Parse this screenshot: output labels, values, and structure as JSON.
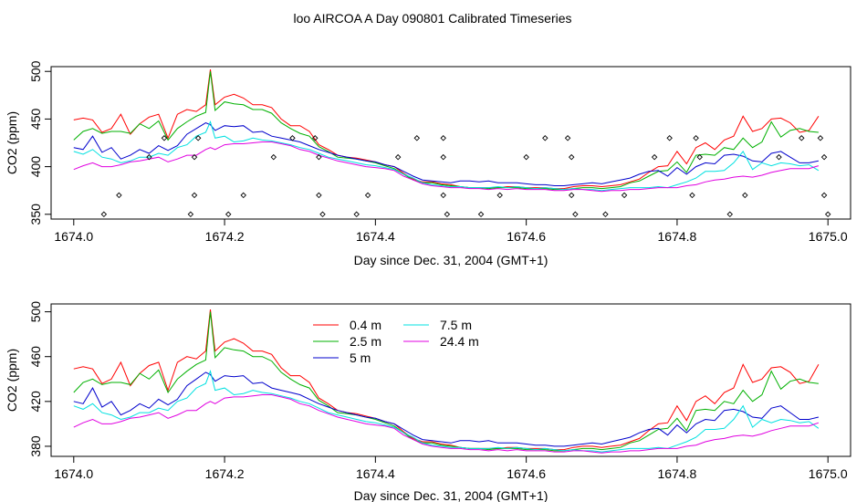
{
  "title": "loo AIRCOA A  Day 090801  Calibrated Timeseries",
  "chart_data": [
    {
      "type": "line",
      "xlabel": "Day since Dec. 31, 2004 (GMT+1)",
      "ylabel": "CO2 (ppm)",
      "xlim": [
        1673.97,
        1675.03
      ],
      "ylim": [
        345,
        505
      ],
      "xticks": [
        1674.0,
        1674.2,
        1674.4,
        1674.6,
        1674.8,
        1675.0
      ],
      "xtick_labels": [
        "1674.0",
        "1674.2",
        "1674.4",
        "1674.6",
        "1674.8",
        "1675.0"
      ],
      "yticks": [
        350,
        400,
        450,
        500
      ],
      "ytick_labels": [
        "350",
        "400",
        "450",
        "500"
      ],
      "grid": false,
      "legend": "none",
      "x": [
        1674.0,
        1674.0125,
        1674.025,
        1674.0375,
        1674.05,
        1674.0625,
        1674.075,
        1674.0875,
        1674.1,
        1674.1125,
        1674.125,
        1674.1375,
        1674.15,
        1674.1625,
        1674.175,
        1674.1812,
        1674.1875,
        1674.2,
        1674.2125,
        1674.225,
        1674.2375,
        1674.25,
        1674.2625,
        1674.275,
        1674.2875,
        1674.3,
        1674.3125,
        1674.325,
        1674.3375,
        1674.35,
        1674.3625,
        1674.375,
        1674.3875,
        1674.4,
        1674.4125,
        1674.425,
        1674.4375,
        1674.45,
        1674.4625,
        1674.475,
        1674.4875,
        1674.5,
        1674.5125,
        1674.525,
        1674.5375,
        1674.55,
        1674.5625,
        1674.575,
        1674.5875,
        1674.6,
        1674.6125,
        1674.625,
        1674.6375,
        1674.65,
        1674.6625,
        1674.675,
        1674.6875,
        1674.7,
        1674.7125,
        1674.725,
        1674.7375,
        1674.75,
        1674.7625,
        1674.775,
        1674.7875,
        1674.8,
        1674.8125,
        1674.825,
        1674.8375,
        1674.85,
        1674.8625,
        1674.875,
        1674.8875,
        1674.9,
        1674.9125,
        1674.925,
        1674.9375,
        1674.95,
        1674.9625,
        1674.975,
        1674.9875
      ],
      "series": [
        {
          "name": "0.4 m",
          "color": "#ff0000",
          "values": [
            449,
            451,
            449,
            436,
            440,
            455,
            434,
            445,
            452,
            455,
            430,
            455,
            460,
            458,
            465,
            502,
            465,
            473,
            476,
            472,
            465,
            465,
            462,
            450,
            443,
            443,
            437,
            423,
            418,
            412,
            410,
            409,
            407,
            405,
            402,
            400,
            393,
            387,
            384,
            384,
            382,
            381,
            379,
            378,
            378,
            378,
            378,
            379,
            379,
            378,
            378,
            378,
            377,
            377,
            379,
            380,
            380,
            379,
            380,
            381,
            384,
            387,
            394,
            400,
            401,
            416,
            403,
            420,
            425,
            418,
            428,
            432,
            453,
            437,
            440,
            450,
            451,
            446,
            436,
            438,
            453
          ]
        },
        {
          "name": "2.5 m",
          "color": "#00b000",
          "values": [
            428,
            437,
            440,
            435,
            437,
            437,
            435,
            445,
            440,
            448,
            428,
            440,
            447,
            453,
            457,
            500,
            459,
            468,
            466,
            465,
            460,
            460,
            456,
            446,
            440,
            435,
            432,
            421,
            416,
            410,
            409,
            408,
            406,
            404,
            401,
            398,
            392,
            386,
            383,
            383,
            381,
            380,
            379,
            378,
            378,
            377,
            378,
            378,
            378,
            377,
            377,
            377,
            376,
            376,
            377,
            378,
            378,
            377,
            378,
            379,
            383,
            385,
            390,
            395,
            396,
            405,
            394,
            412,
            413,
            412,
            420,
            418,
            430,
            420,
            426,
            447,
            431,
            438,
            440,
            437,
            436
          ]
        },
        {
          "name": "5 m",
          "color": "#0000cc",
          "values": [
            420,
            418,
            432,
            415,
            420,
            408,
            412,
            418,
            414,
            422,
            417,
            422,
            434,
            440,
            446,
            444,
            438,
            443,
            442,
            443,
            436,
            437,
            432,
            430,
            428,
            426,
            422,
            418,
            415,
            412,
            410,
            408,
            406,
            405,
            402,
            400,
            395,
            390,
            386,
            385,
            384,
            383,
            385,
            385,
            384,
            385,
            383,
            383,
            383,
            382,
            381,
            381,
            380,
            380,
            381,
            382,
            383,
            382,
            384,
            386,
            388,
            392,
            395,
            396,
            390,
            399,
            392,
            400,
            404,
            403,
            412,
            413,
            411,
            406,
            405,
            414,
            416,
            410,
            404,
            404,
            406
          ]
        },
        {
          "name": "7.5 m",
          "color": "#00e0e0",
          "values": [
            416,
            413,
            418,
            410,
            408,
            404,
            406,
            410,
            410,
            414,
            412,
            420,
            423,
            432,
            436,
            447,
            430,
            432,
            426,
            427,
            430,
            428,
            427,
            425,
            423,
            420,
            418,
            414,
            410,
            408,
            406,
            404,
            402,
            401,
            399,
            397,
            392,
            388,
            383,
            381,
            380,
            379,
            379,
            378,
            378,
            378,
            379,
            378,
            379,
            378,
            377,
            378,
            377,
            376,
            377,
            376,
            376,
            375,
            376,
            377,
            378,
            378,
            378,
            379,
            378,
            381,
            384,
            388,
            395,
            395,
            396,
            404,
            416,
            397,
            404,
            401,
            404,
            403,
            401,
            402,
            396
          ]
        },
        {
          "name": "24.4 m",
          "color": "#e000e0",
          "values": [
            397,
            401,
            404,
            400,
            400,
            402,
            405,
            406,
            408,
            410,
            405,
            408,
            412,
            412,
            418,
            420,
            418,
            423,
            424,
            424,
            425,
            426,
            426,
            424,
            422,
            418,
            416,
            412,
            409,
            406,
            404,
            402,
            400,
            399,
            398,
            396,
            390,
            386,
            382,
            380,
            379,
            378,
            378,
            377,
            377,
            376,
            377,
            376,
            377,
            376,
            376,
            376,
            375,
            375,
            376,
            376,
            375,
            374,
            375,
            375,
            376,
            376,
            377,
            378,
            378,
            378,
            380,
            381,
            384,
            386,
            387,
            389,
            390,
            389,
            391,
            394,
            396,
            398,
            398,
            398,
            401
          ]
        }
      ],
      "scatter_series": {
        "name": "",
        "marker": "open-diamond",
        "x": [
          1674.04,
          1674.06,
          1674.1,
          1674.12,
          1674.155,
          1674.16,
          1674.16,
          1674.165,
          1674.205,
          1674.225,
          1674.265,
          1674.29,
          1674.32,
          1674.325,
          1674.325,
          1674.33,
          1674.375,
          1674.39,
          1674.43,
          1674.455,
          1674.49,
          1674.49,
          1674.49,
          1674.495,
          1674.54,
          1674.565,
          1674.6,
          1674.625,
          1674.655,
          1674.66,
          1674.66,
          1674.665,
          1674.705,
          1674.73,
          1674.77,
          1674.79,
          1674.82,
          1674.825,
          1674.83,
          1674.87,
          1674.89,
          1674.935,
          1674.965,
          1674.99,
          1674.995,
          1674.995,
          1675.0
        ],
        "y": [
          350,
          370,
          410,
          430,
          350,
          370,
          410,
          430,
          350,
          370,
          410,
          430,
          430,
          410,
          370,
          350,
          350,
          370,
          410,
          430,
          430,
          410,
          370,
          350,
          350,
          370,
          410,
          430,
          430,
          410,
          370,
          350,
          350,
          370,
          410,
          430,
          370,
          430,
          410,
          350,
          370,
          410,
          430,
          430,
          410,
          370,
          350
        ]
      }
    },
    {
      "type": "line",
      "xlabel": "Day since Dec. 31, 2004 (GMT+1)",
      "ylabel": "CO2 (ppm)",
      "xlim": [
        1673.97,
        1675.03
      ],
      "ylim": [
        371,
        507
      ],
      "xticks": [
        1674.0,
        1674.2,
        1674.4,
        1674.6,
        1674.8,
        1675.0
      ],
      "xtick_labels": [
        "1674.0",
        "1674.2",
        "1674.4",
        "1674.6",
        "1674.8",
        "1675.0"
      ],
      "yticks": [
        380,
        420,
        460,
        500
      ],
      "ytick_labels": [
        "380",
        "420",
        "460",
        "500"
      ],
      "grid": false,
      "legend": "top-center",
      "legend_entries": [
        {
          "label": "0.4 m",
          "color": "#ff0000"
        },
        {
          "label": "2.5 m",
          "color": "#00b000"
        },
        {
          "label": "5 m",
          "color": "#0000cc"
        },
        {
          "label": "7.5 m",
          "color": "#00e0e0"
        },
        {
          "label": "24.4 m",
          "color": "#e000e0"
        }
      ]
    }
  ]
}
